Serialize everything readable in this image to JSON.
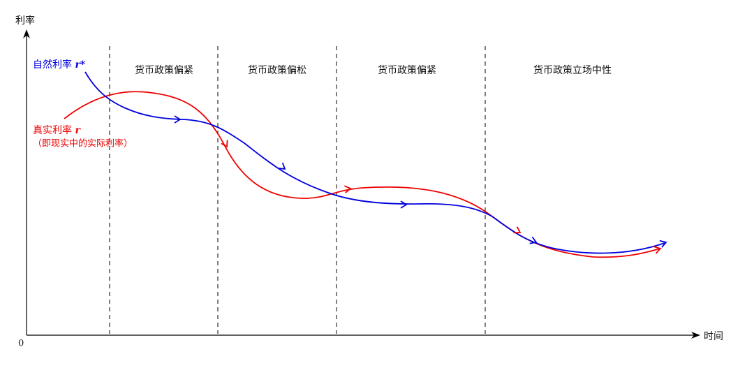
{
  "axes": {
    "y_label": "利率",
    "x_label": "时间",
    "origin": "0"
  },
  "regions": [
    "货币政策偏紧",
    "货币政策偏松",
    "货币政策偏紧",
    "货币政策立场中性"
  ],
  "curves": [
    {
      "name": "自然利率",
      "symbol": "r*",
      "color": "#0000dd"
    },
    {
      "name": "真实利率",
      "symbol": "r",
      "note": "（即现实中的实际利率）",
      "color": "#ee0000"
    }
  ]
}
